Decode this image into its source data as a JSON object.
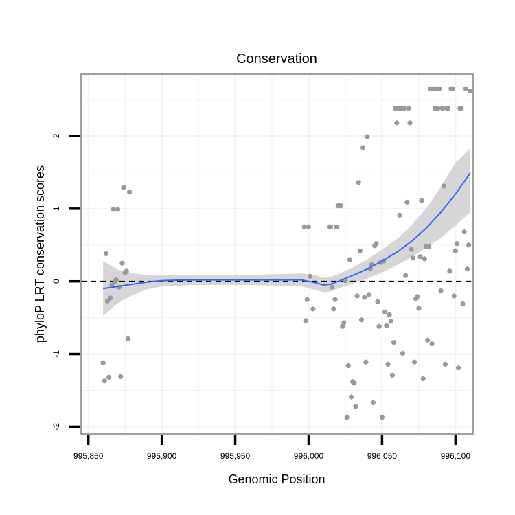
{
  "chart_data": {
    "type": "scatter",
    "title": "Conservation",
    "xlabel": "Genomic Position",
    "ylabel": "phyloP LRT conservation scores",
    "xlim": [
      995845,
      996112
    ],
    "ylim": [
      -2.1,
      2.85
    ],
    "x_ticks": [
      995850,
      995900,
      995950,
      996000,
      996050,
      996100
    ],
    "x_tick_labels": [
      "995,850",
      "995,900",
      "995,950",
      "996,000",
      "996,050",
      "996,100"
    ],
    "y_ticks": [
      -2,
      -1,
      0,
      1,
      2
    ],
    "y_tick_labels": [
      "-2",
      "-1",
      "0",
      "1",
      "2"
    ],
    "grid": true,
    "reference_line": {
      "y": 0,
      "style": "dashed",
      "color": "#000000"
    },
    "colors": {
      "points": "#999999",
      "smooth_line": "#3366ff",
      "ci_band": "#d6d6d6",
      "grid": "#f2f2f2",
      "panel_border": "#808080"
    },
    "points": [
      [
        995860,
        -1.12
      ],
      [
        995861,
        -1.37
      ],
      [
        995862,
        0.38
      ],
      [
        995863,
        -0.27
      ],
      [
        995864,
        -1.32
      ],
      [
        995865,
        -0.23
      ],
      [
        995866,
        -0.05
      ],
      [
        995867,
        0.99
      ],
      [
        995868,
        0.0
      ],
      [
        995869,
        0.02
      ],
      [
        995870,
        0.99
      ],
      [
        995871,
        -0.08
      ],
      [
        995872,
        -1.31
      ],
      [
        995873,
        0.25
      ],
      [
        995874,
        1.29
      ],
      [
        995875,
        0.12
      ],
      [
        995876,
        0.14
      ],
      [
        995877,
        -0.79
      ],
      [
        995878,
        1.23
      ],
      [
        995997,
        0.75
      ],
      [
        995998,
        -0.54
      ],
      [
        995999,
        -0.25
      ],
      [
        996000,
        0.75
      ],
      [
        996001,
        0.07
      ],
      [
        996003,
        -0.38
      ],
      [
        996014,
        0.75
      ],
      [
        996015,
        0.75
      ],
      [
        996016,
        -0.08
      ],
      [
        996017,
        -0.38
      ],
      [
        996018,
        -0.25
      ],
      [
        996019,
        0.75
      ],
      [
        996020,
        1.04
      ],
      [
        996021,
        1.04
      ],
      [
        996022,
        1.04
      ],
      [
        996023,
        -0.62
      ],
      [
        996024,
        -0.57
      ],
      [
        996025,
        0.01
      ],
      [
        996026,
        -1.87
      ],
      [
        996027,
        -1.16
      ],
      [
        996028,
        0.3
      ],
      [
        996029,
        -1.59
      ],
      [
        996030,
        -1.38
      ],
      [
        996031,
        -1.4
      ],
      [
        996032,
        -1.72
      ],
      [
        996033,
        -0.2
      ],
      [
        996034,
        1.36
      ],
      [
        996035,
        0.42
      ],
      [
        996036,
        -0.53
      ],
      [
        996037,
        1.84
      ],
      [
        996038,
        -0.22
      ],
      [
        996039,
        -1.11
      ],
      [
        996040,
        1.99
      ],
      [
        996041,
        -0.18
      ],
      [
        996042,
        0.17
      ],
      [
        996043,
        0.23
      ],
      [
        996044,
        -1.67
      ],
      [
        996045,
        0.49
      ],
      [
        996046,
        0.52
      ],
      [
        996047,
        -0.28
      ],
      [
        996048,
        -0.62
      ],
      [
        996049,
        0.26
      ],
      [
        996050,
        -1.87
      ],
      [
        996051,
        0.28
      ],
      [
        996052,
        -0.42
      ],
      [
        996053,
        -0.61
      ],
      [
        996054,
        -1.14
      ],
      [
        996055,
        -0.46
      ],
      [
        996056,
        -0.55
      ],
      [
        996057,
        -1.29
      ],
      [
        996058,
        -0.84
      ],
      [
        996059,
        2.38
      ],
      [
        996060,
        2.18
      ],
      [
        996061,
        2.38
      ],
      [
        996062,
        0.91
      ],
      [
        996063,
        2.38
      ],
      [
        996064,
        -0.99
      ],
      [
        996065,
        2.38
      ],
      [
        996066,
        0.08
      ],
      [
        996067,
        1.09
      ],
      [
        996068,
        2.38
      ],
      [
        996069,
        2.18
      ],
      [
        996070,
        0.44
      ],
      [
        996071,
        0.32
      ],
      [
        996072,
        -1.11
      ],
      [
        996073,
        -0.24
      ],
      [
        996074,
        -0.21
      ],
      [
        996075,
        -0.37
      ],
      [
        996076,
        0.34
      ],
      [
        996077,
        1.11
      ],
      [
        996078,
        -1.34
      ],
      [
        996079,
        0.31
      ],
      [
        996080,
        0.48
      ],
      [
        996081,
        -0.81
      ],
      [
        996082,
        0.48
      ],
      [
        996083,
        2.65
      ],
      [
        996084,
        -0.86
      ],
      [
        996085,
        2.65
      ],
      [
        996086,
        2.38
      ],
      [
        996087,
        2.65
      ],
      [
        996088,
        2.38
      ],
      [
        996089,
        2.65
      ],
      [
        996090,
        -0.13
      ],
      [
        996091,
        2.38
      ],
      [
        996092,
        1.31
      ],
      [
        996093,
        -1.14
      ],
      [
        996094,
        2.38
      ],
      [
        996095,
        2.38
      ],
      [
        996096,
        0.14
      ],
      [
        996097,
        2.65
      ],
      [
        996098,
        2.65
      ],
      [
        996099,
        -0.2
      ],
      [
        996100,
        0.42
      ],
      [
        996101,
        0.52
      ],
      [
        996102,
        -1.19
      ],
      [
        996103,
        2.38
      ],
      [
        996104,
        2.38
      ],
      [
        996105,
        -0.31
      ],
      [
        996106,
        0.68
      ],
      [
        996107,
        2.65
      ],
      [
        996108,
        0.17
      ],
      [
        996109,
        0.5
      ],
      [
        996110,
        2.62
      ]
    ],
    "smooth": {
      "x": [
        995860,
        995870,
        995880,
        995890,
        995900,
        995920,
        995940,
        995960,
        995980,
        995995,
        996005,
        996010,
        996015,
        996020,
        996030,
        996040,
        996050,
        996060,
        996070,
        996080,
        996090,
        996100,
        996110
      ],
      "y": [
        -0.1,
        -0.07,
        -0.04,
        -0.01,
        0.01,
        0.02,
        0.02,
        0.02,
        0.02,
        0.02,
        -0.02,
        -0.05,
        -0.04,
        0.0,
        0.08,
        0.17,
        0.28,
        0.4,
        0.55,
        0.73,
        0.95,
        1.2,
        1.49
      ],
      "lo": [
        -0.48,
        -0.3,
        -0.19,
        -0.11,
        -0.07,
        -0.05,
        -0.05,
        -0.05,
        -0.06,
        -0.07,
        -0.12,
        -0.15,
        -0.14,
        -0.1,
        -0.03,
        0.04,
        0.12,
        0.22,
        0.33,
        0.46,
        0.6,
        0.77,
        0.95
      ],
      "hi": [
        0.28,
        0.16,
        0.11,
        0.09,
        0.09,
        0.09,
        0.09,
        0.09,
        0.1,
        0.11,
        0.08,
        0.05,
        0.06,
        0.1,
        0.19,
        0.3,
        0.44,
        0.58,
        0.77,
        1.0,
        1.3,
        1.63,
        1.83
      ]
    }
  }
}
